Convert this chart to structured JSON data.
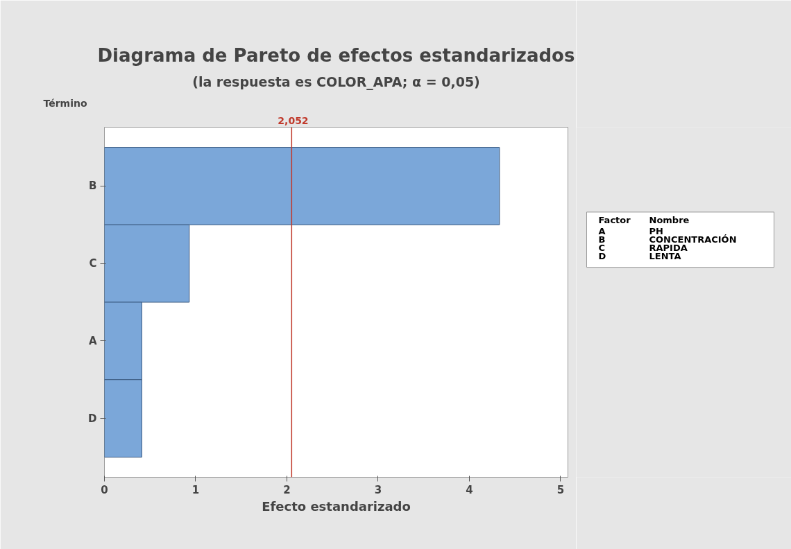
{
  "chart_data": {
    "type": "bar",
    "orientation": "horizontal",
    "title": "Diagrama de Pareto de efectos estandarizados",
    "subtitle": "(la respuesta es COLOR_APA; α = 0,05)",
    "xlabel": "Efecto estandarizado",
    "ylabel": "Término",
    "categories": [
      "B",
      "C",
      "A",
      "D"
    ],
    "values": [
      4.33,
      0.93,
      0.41,
      0.41
    ],
    "color": "#7ba7d9",
    "xlim": [
      0,
      5.08
    ],
    "xticks": [
      0,
      1,
      2,
      3,
      4,
      5
    ],
    "grid": false,
    "ref_lines": [
      {
        "axis": "x",
        "value": 2.052,
        "label": "2,052",
        "color": "#c0392b"
      }
    ],
    "annotations": [
      "Factor",
      "Nombre",
      "A",
      "PH",
      "B",
      "CONCENTRACIÓN",
      "C",
      "RAPIDA",
      "D",
      "LENTA"
    ]
  }
}
